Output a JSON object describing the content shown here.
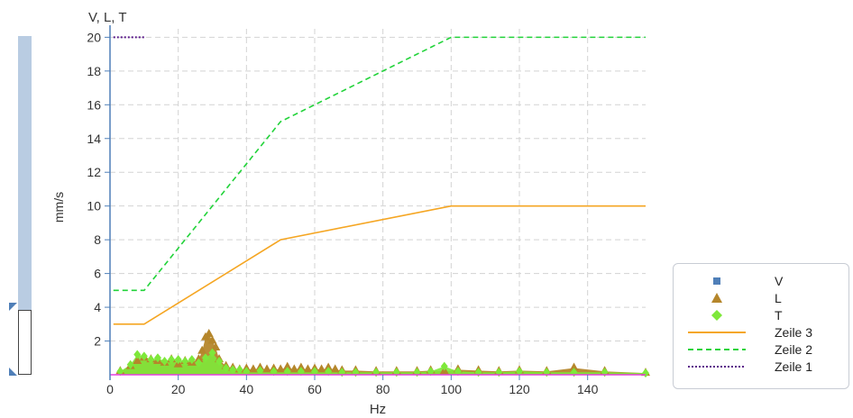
{
  "chart_data": {
    "type": "line",
    "title": "V, L, T",
    "xlabel": "Hz",
    "ylabel": "mm/s",
    "xlim": [
      0,
      157
    ],
    "ylim": [
      0,
      20.5
    ],
    "x_ticks": [
      "0",
      "20",
      "40",
      "60",
      "80",
      "100",
      "120",
      "140"
    ],
    "y_ticks": [
      "2",
      "4",
      "6",
      "8",
      "10",
      "12",
      "14",
      "16",
      "18",
      "20"
    ],
    "grid": true,
    "legend_position": "bottom-right",
    "series": [
      {
        "name": "V",
        "kind": "scatter-square",
        "color": "#4f7fb8",
        "x": [],
        "y": []
      },
      {
        "name": "L",
        "kind": "area-triangle",
        "color": "#b5862b",
        "x": [
          3,
          6,
          8,
          10,
          12,
          14,
          16,
          18,
          20,
          22,
          24,
          26,
          27,
          28,
          29,
          30,
          31,
          32,
          34,
          36,
          38,
          40,
          42,
          44,
          46,
          48,
          50,
          52,
          54,
          56,
          58,
          60,
          62,
          64,
          66,
          68,
          72,
          78,
          84,
          90,
          94,
          98,
          102,
          108,
          114,
          120,
          128,
          136,
          145,
          157
        ],
        "y": [
          0.2,
          0.5,
          0.8,
          1.0,
          0.9,
          0.8,
          0.7,
          0.9,
          0.6,
          0.8,
          0.7,
          0.9,
          1.4,
          2.2,
          2.4,
          2.0,
          1.6,
          0.9,
          0.5,
          0.4,
          0.3,
          0.35,
          0.3,
          0.4,
          0.3,
          0.35,
          0.3,
          0.45,
          0.3,
          0.4,
          0.3,
          0.35,
          0.3,
          0.4,
          0.3,
          0.25,
          0.25,
          0.2,
          0.2,
          0.2,
          0.25,
          0.2,
          0.3,
          0.25,
          0.2,
          0.25,
          0.2,
          0.4,
          0.2,
          0.1
        ]
      },
      {
        "name": "T",
        "kind": "area-diamond",
        "color": "#7ee83a",
        "x": [
          3,
          6,
          8,
          10,
          12,
          14,
          16,
          18,
          20,
          22,
          24,
          26,
          28,
          30,
          32,
          34,
          36,
          38,
          40,
          44,
          48,
          52,
          56,
          60,
          64,
          68,
          72,
          78,
          84,
          90,
          94,
          98,
          102,
          108,
          114,
          120,
          128,
          136,
          145,
          157
        ],
        "y": [
          0.2,
          0.6,
          1.2,
          1.1,
          0.9,
          1.0,
          0.8,
          0.9,
          0.9,
          0.8,
          0.9,
          0.7,
          1.0,
          1.3,
          0.8,
          0.4,
          0.3,
          0.3,
          0.2,
          0.25,
          0.2,
          0.2,
          0.2,
          0.2,
          0.2,
          0.15,
          0.15,
          0.15,
          0.15,
          0.15,
          0.2,
          0.5,
          0.2,
          0.15,
          0.15,
          0.2,
          0.15,
          0.15,
          0.15,
          0.1
        ]
      },
      {
        "name": "Zeile 3",
        "kind": "line-solid",
        "color": "#f5a623",
        "x": [
          1,
          10,
          50,
          100,
          157
        ],
        "y": [
          3,
          3,
          8,
          10,
          10
        ]
      },
      {
        "name": "Zeile 2",
        "kind": "line-dashed",
        "color": "#22d33a",
        "x": [
          1,
          10,
          50,
          100,
          157
        ],
        "y": [
          5,
          5,
          15,
          20,
          20
        ]
      },
      {
        "name": "Zeile 1",
        "kind": "line-dotted",
        "color": "#5b1a8a",
        "x": [
          1,
          10
        ],
        "y": [
          20,
          20
        ]
      }
    ]
  },
  "legend": {
    "items": [
      {
        "label": "V",
        "symbol": "square",
        "color": "#4f7fb8"
      },
      {
        "label": "L",
        "symbol": "triangle",
        "color": "#b5862b"
      },
      {
        "label": "T",
        "symbol": "diamond",
        "color": "#7ee83a"
      },
      {
        "label": "Zeile 3",
        "symbol": "line-solid",
        "color": "#f5a623"
      },
      {
        "label": "Zeile 2",
        "symbol": "line-dashed",
        "color": "#22d33a"
      },
      {
        "label": "Zeile 1",
        "symbol": "line-dotted",
        "color": "#5b1a8a"
      }
    ]
  },
  "colors": {
    "axis": "#4f7fb8",
    "grid": "#d3d3d3",
    "baseline": "#e53ee0",
    "slider_track": "#b9cce2"
  }
}
